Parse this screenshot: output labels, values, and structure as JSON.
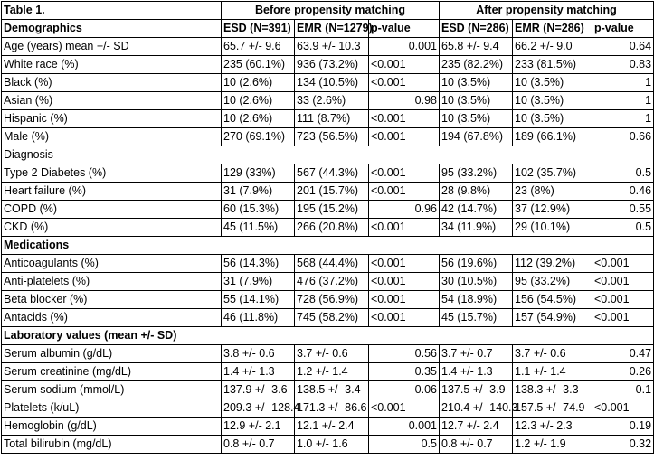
{
  "table": {
    "title": "Table 1.",
    "group_before": "Before propensity matching",
    "group_after": "After propensity matching",
    "header": {
      "label": "Demographics",
      "cols": [
        "ESD (N=391)",
        "EMR (N=1279)",
        "p-value",
        "ESD (N=286)",
        "EMR (N=286)",
        "p-value"
      ]
    },
    "rows": [
      {
        "label": "Age (years) mean +/- SD",
        "cells": [
          "65.7 +/- 9.6",
          "63.9 +/- 10.3",
          "0.001",
          "65.8 +/- 9.4",
          "66.2 +/- 9.0",
          "0.64"
        ]
      },
      {
        "label": "White race (%)",
        "cells": [
          "235 (60.1%)",
          "936 (73.2%)",
          "<0.001",
          "235 (82.2%)",
          "233 (81.5%)",
          "0.83"
        ]
      },
      {
        "label": "Black (%)",
        "cells": [
          "10 (2.6%)",
          "134 (10.5%)",
          "<0.001",
          "10 (3.5%)",
          "10 (3.5%)",
          "1"
        ]
      },
      {
        "label": "Asian (%)",
        "cells": [
          "10 (2.6%)",
          "33 (2.6%)",
          "0.98",
          "10 (3.5%)",
          "10 (3.5%)",
          "1"
        ]
      },
      {
        "label": "Hispanic (%)",
        "cells": [
          "10 (2.6%)",
          "111 (8.7%)",
          "<0.001",
          "10 (3.5%)",
          "10 (3.5%)",
          "1"
        ]
      },
      {
        "label": "Male (%)",
        "cells": [
          "270 (69.1%)",
          "723 (56.5%)",
          "<0.001",
          "194 (67.8%)",
          "189 (66.1%)",
          "0.66"
        ]
      },
      {
        "section": "Diagnosis",
        "bold": false
      },
      {
        "label": "Type 2 Diabetes (%)",
        "cells": [
          "129 (33%)",
          "567 (44.3%)",
          "<0.001",
          "95 (33.2%)",
          "102 (35.7%)",
          "0.5"
        ]
      },
      {
        "label": "Heart failure (%)",
        "cells": [
          "31 (7.9%)",
          "201 (15.7%)",
          "<0.001",
          "28 (9.8%)",
          "23 (8%)",
          "0.46"
        ]
      },
      {
        "label": "COPD (%)",
        "cells": [
          "60 (15.3%)",
          "195 (15.2%)",
          "0.96",
          "42 (14.7%)",
          "37 (12.9%)",
          "0.55"
        ]
      },
      {
        "label": "CKD (%)",
        "cells": [
          "45 (11.5%)",
          "266 (20.8%)",
          "<0.001",
          "34 (11.9%)",
          "29 (10.1%)",
          "0.5"
        ]
      },
      {
        "section": "Medications",
        "bold": true
      },
      {
        "label": "Anticoagulants (%)",
        "cells": [
          "56 (14.3%)",
          "568 (44.4%)",
          "<0.001",
          "56 (19.6%)",
          "112 (39.2%)",
          "<0.001"
        ]
      },
      {
        "label": "Anti-platelets (%)",
        "cells": [
          "31 (7.9%)",
          "476 (37.2%)",
          "<0.001",
          "30 (10.5%)",
          "95 (33.2%)",
          "<0.001"
        ]
      },
      {
        "label": "Beta blocker (%)",
        "cells": [
          "55 (14.1%)",
          "728 (56.9%)",
          "<0.001",
          "54 (18.9%)",
          "156 (54.5%)",
          "<0.001"
        ]
      },
      {
        "label": "Antacids (%)",
        "cells": [
          "46 (11.8%)",
          "745 (58.2%)",
          "<0.001",
          "45 (15.7%)",
          "157 (54.9%)",
          "<0.001"
        ]
      },
      {
        "section": "Laboratory values (mean +/- SD)",
        "bold": true
      },
      {
        "label": "Serum albumin (g/dL)",
        "cells": [
          "3.8 +/- 0.6",
          "3.7 +/- 0.6",
          "0.56",
          "3.7 +/- 0.7",
          "3.7 +/- 0.6",
          "0.47"
        ]
      },
      {
        "label": "Serum creatinine (mg/dL)",
        "cells": [
          "1.4 +/- 1.3",
          "1.2 +/- 1.4",
          "0.35",
          "1.4 +/- 1.3",
          "1.1 +/- 1.4",
          "0.26"
        ]
      },
      {
        "label": "Serum sodium (mmol/L)",
        "cells": [
          "137.9 +/- 3.6",
          "138.5 +/- 3.4",
          "0.06",
          "137.5 +/- 3.9",
          "138.3 +/- 3.3",
          "0.1"
        ]
      },
      {
        "label": "Platelets (k/uL)",
        "cells": [
          "209.3 +/- 128.4",
          "171.3 +/- 86.6",
          "<0.001",
          "210.4 +/- 140.3",
          "157.5 +/- 74.9",
          "<0.001"
        ]
      },
      {
        "label": "Hemoglobin (g/dL)",
        "cells": [
          "12.9 +/- 2.1",
          "12.1 +/- 2.4",
          "0.001",
          "12.7 +/- 2.4",
          "12.3 +/- 2.3",
          "0.19"
        ]
      },
      {
        "label": "Total bilirubin (mg/dL)",
        "cells": [
          "0.8 +/- 0.7",
          "1.0 +/- 1.6",
          "0.5",
          "0.8 +/- 0.7",
          "1.2 +/- 1.9",
          "0.32"
        ]
      }
    ]
  }
}
